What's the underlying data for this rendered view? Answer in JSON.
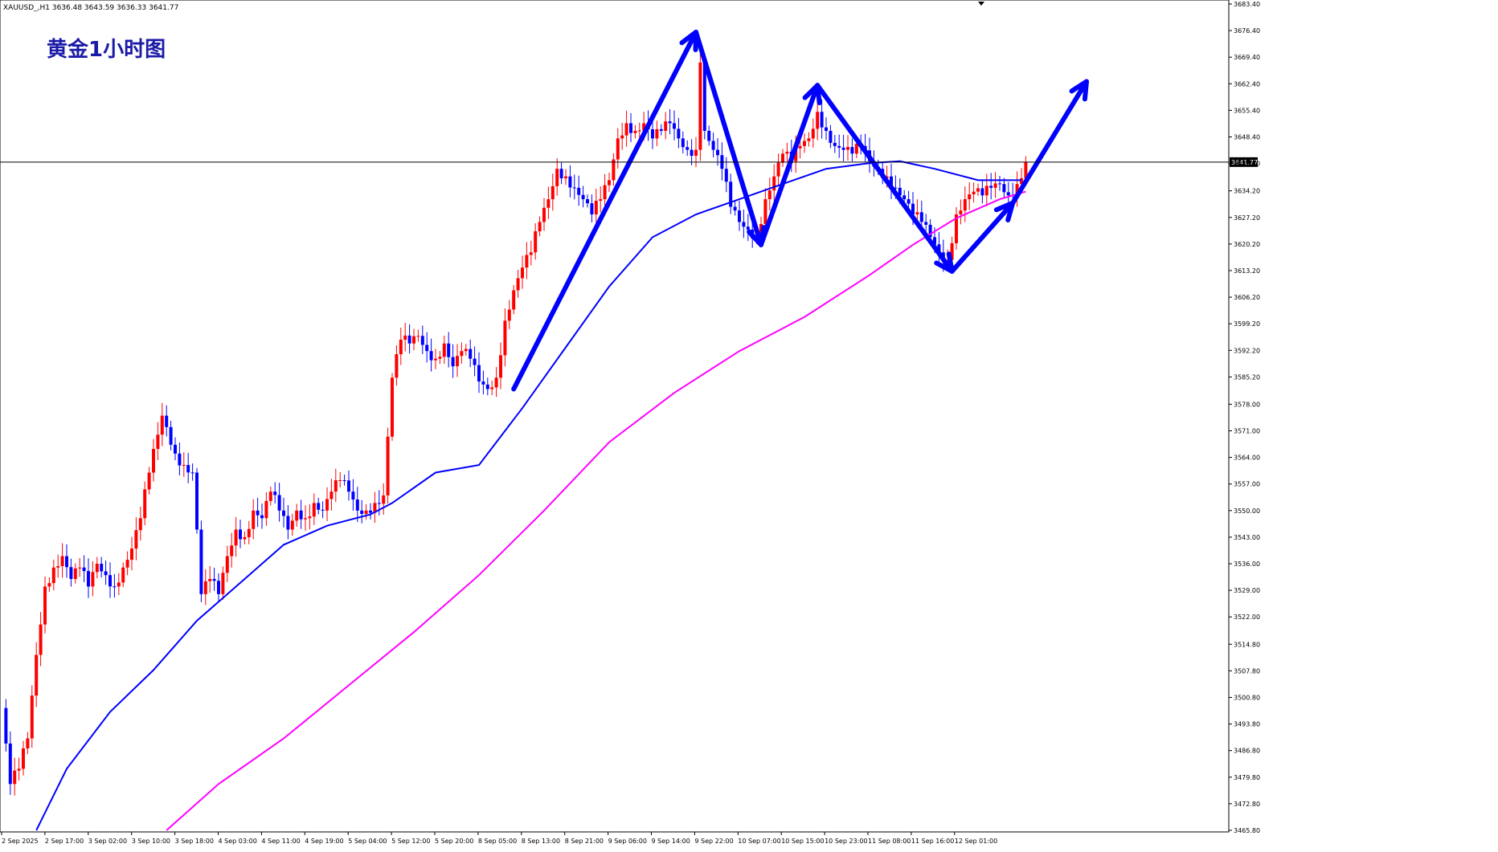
{
  "header": {
    "symbol_info": "XAUUSD_,H1  3636.48 3643.59 3636.33 3641.77",
    "chart_title": "黄金1小时图"
  },
  "current_price": {
    "value": 3641.77,
    "label": "3641.77"
  },
  "colors": {
    "bull": "#ff0000",
    "bear": "#0000ff",
    "ma_fast": "#0000ff",
    "ma_slow": "#ff00ff",
    "arrow": "#0000ff",
    "title": "#1a1aa8",
    "grid_line": "#000000"
  },
  "chart_data": {
    "type": "candlestick",
    "y_axis": {
      "min": 3465.8,
      "max": 3683.4,
      "ticks": [
        "3683.40",
        "3676.40",
        "3669.40",
        "3662.40",
        "3655.40",
        "3648.40",
        "3641.40",
        "3634.20",
        "3627.20",
        "3620.20",
        "3613.20",
        "3606.20",
        "3599.20",
        "3592.20",
        "3585.20",
        "3578.00",
        "3571.00",
        "3564.00",
        "3557.00",
        "3550.00",
        "3543.00",
        "3536.00",
        "3529.00",
        "3522.00",
        "3514.80",
        "3507.80",
        "3500.80",
        "3493.80",
        "3486.80",
        "3479.80",
        "3472.80",
        "3465.80"
      ]
    },
    "x_axis": {
      "labels": [
        "2 Sep 2025",
        "2 Sep 17:00",
        "3 Sep 02:00",
        "3 Sep 10:00",
        "3 Sep 18:00",
        "4 Sep 03:00",
        "4 Sep 11:00",
        "4 Sep 19:00",
        "5 Sep 04:00",
        "5 Sep 12:00",
        "5 Sep 20:00",
        "8 Sep 05:00",
        "8 Sep 13:00",
        "8 Sep 21:00",
        "9 Sep 06:00",
        "9 Sep 14:00",
        "9 Sep 22:00",
        "10 Sep 07:00",
        "10 Sep 15:00",
        "10 Sep 23:00",
        "11 Sep 08:00",
        "11 Sep 16:00",
        "12 Sep 01:00"
      ]
    },
    "close_path": [
      [
        0,
        3498
      ],
      [
        2,
        3478
      ],
      [
        4,
        3482
      ],
      [
        6,
        3490
      ],
      [
        8,
        3512
      ],
      [
        10,
        3530
      ],
      [
        12,
        3535
      ],
      [
        14,
        3538
      ],
      [
        16,
        3532
      ],
      [
        18,
        3535
      ],
      [
        20,
        3530
      ],
      [
        22,
        3536
      ],
      [
        24,
        3533
      ],
      [
        26,
        3530
      ],
      [
        28,
        3535
      ],
      [
        30,
        3540
      ],
      [
        32,
        3548
      ],
      [
        34,
        3560
      ],
      [
        36,
        3570
      ],
      [
        37,
        3575
      ],
      [
        38,
        3572
      ],
      [
        40,
        3565
      ],
      [
        42,
        3562
      ],
      [
        44,
        3560
      ],
      [
        45,
        3545
      ],
      [
        46,
        3528
      ],
      [
        48,
        3532
      ],
      [
        50,
        3528
      ],
      [
        52,
        3538
      ],
      [
        54,
        3545
      ],
      [
        56,
        3543
      ],
      [
        58,
        3550
      ],
      [
        60,
        3548
      ],
      [
        62,
        3555
      ],
      [
        64,
        3550
      ],
      [
        66,
        3545
      ],
      [
        68,
        3550
      ],
      [
        70,
        3548
      ],
      [
        72,
        3552
      ],
      [
        74,
        3550
      ],
      [
        76,
        3555
      ],
      [
        78,
        3558
      ],
      [
        80,
        3555
      ],
      [
        82,
        3550
      ],
      [
        84,
        3550
      ],
      [
        86,
        3552
      ],
      [
        88,
        3554
      ],
      [
        90,
        3585
      ],
      [
        92,
        3595
      ],
      [
        94,
        3594
      ],
      [
        96,
        3596
      ],
      [
        98,
        3592
      ],
      [
        100,
        3590
      ],
      [
        102,
        3594
      ],
      [
        104,
        3588
      ],
      [
        106,
        3592
      ],
      [
        108,
        3590
      ],
      [
        110,
        3584
      ],
      [
        112,
        3582
      ],
      [
        114,
        3585
      ],
      [
        116,
        3600
      ],
      [
        118,
        3608
      ],
      [
        120,
        3614
      ],
      [
        122,
        3618
      ],
      [
        124,
        3626
      ],
      [
        126,
        3632
      ],
      [
        128,
        3640
      ],
      [
        130,
        3638
      ],
      [
        132,
        3635
      ],
      [
        134,
        3632
      ],
      [
        136,
        3628
      ],
      [
        138,
        3632
      ],
      [
        140,
        3637
      ],
      [
        142,
        3648
      ],
      [
        144,
        3652
      ],
      [
        146,
        3650
      ],
      [
        148,
        3652
      ],
      [
        150,
        3648
      ],
      [
        152,
        3650
      ],
      [
        154,
        3652
      ],
      [
        156,
        3648
      ],
      [
        158,
        3645
      ],
      [
        160,
        3645
      ],
      [
        161,
        3668
      ],
      [
        162,
        3650
      ],
      [
        164,
        3645
      ],
      [
        166,
        3640
      ],
      [
        168,
        3630
      ],
      [
        170,
        3626
      ],
      [
        172,
        3624
      ],
      [
        174,
        3622
      ],
      [
        176,
        3632
      ],
      [
        178,
        3638
      ],
      [
        180,
        3644
      ],
      [
        182,
        3642
      ],
      [
        184,
        3646
      ],
      [
        186,
        3648
      ],
      [
        188,
        3655
      ],
      [
        190,
        3650
      ],
      [
        192,
        3646
      ],
      [
        194,
        3645
      ],
      [
        196,
        3644
      ],
      [
        198,
        3646
      ],
      [
        200,
        3642
      ],
      [
        202,
        3640
      ],
      [
        204,
        3638
      ],
      [
        206,
        3635
      ],
      [
        208,
        3632
      ],
      [
        210,
        3628
      ],
      [
        212,
        3626
      ],
      [
        214,
        3622
      ],
      [
        216,
        3618
      ],
      [
        218,
        3616
      ],
      [
        220,
        3628
      ],
      [
        222,
        3632
      ],
      [
        224,
        3634
      ],
      [
        226,
        3633
      ],
      [
        228,
        3635
      ],
      [
        230,
        3636
      ],
      [
        232,
        3633
      ],
      [
        234,
        3636
      ],
      [
        236,
        3641.77
      ]
    ],
    "moving_averages": [
      {
        "color": "ma_fast",
        "points": [
          [
            8,
            3465.8
          ],
          [
            15,
            3482
          ],
          [
            25,
            3497
          ],
          [
            35,
            3508
          ],
          [
            45,
            3521
          ],
          [
            55,
            3531
          ],
          [
            65,
            3541
          ],
          [
            75,
            3546
          ],
          [
            85,
            3549
          ],
          [
            90,
            3552
          ],
          [
            100,
            3560
          ],
          [
            110,
            3562
          ],
          [
            120,
            3577
          ],
          [
            130,
            3593
          ],
          [
            140,
            3609
          ],
          [
            150,
            3622
          ],
          [
            160,
            3628
          ],
          [
            170,
            3632
          ],
          [
            180,
            3636
          ],
          [
            190,
            3640
          ],
          [
            200,
            3641.5
          ],
          [
            207,
            3642
          ],
          [
            215,
            3640
          ],
          [
            225,
            3637
          ],
          [
            235,
            3637
          ]
        ]
      },
      {
        "color": "ma_slow",
        "points": [
          [
            38,
            3465.8
          ],
          [
            50,
            3478
          ],
          [
            65,
            3490
          ],
          [
            80,
            3504
          ],
          [
            95,
            3518
          ],
          [
            110,
            3533
          ],
          [
            125,
            3550
          ],
          [
            140,
            3568
          ],
          [
            155,
            3581
          ],
          [
            170,
            3592
          ],
          [
            185,
            3601
          ],
          [
            200,
            3612
          ],
          [
            210,
            3620
          ],
          [
            220,
            3627
          ],
          [
            230,
            3632
          ],
          [
            236,
            3634
          ]
        ]
      }
    ],
    "arrows": [
      {
        "from": [
          118,
          3582
        ],
        "to": [
          160,
          3676
        ]
      },
      {
        "from": [
          160,
          3676
        ],
        "to": [
          175,
          3620
        ]
      },
      {
        "from": [
          175,
          3620
        ],
        "to": [
          188,
          3662
        ]
      },
      {
        "from": [
          188,
          3662
        ],
        "to": [
          219,
          3613
        ]
      },
      {
        "from": [
          219,
          3613
        ],
        "to": [
          233,
          3631
        ]
      },
      {
        "from": [
          233,
          3631
        ],
        "to": [
          250,
          3663
        ]
      }
    ]
  }
}
